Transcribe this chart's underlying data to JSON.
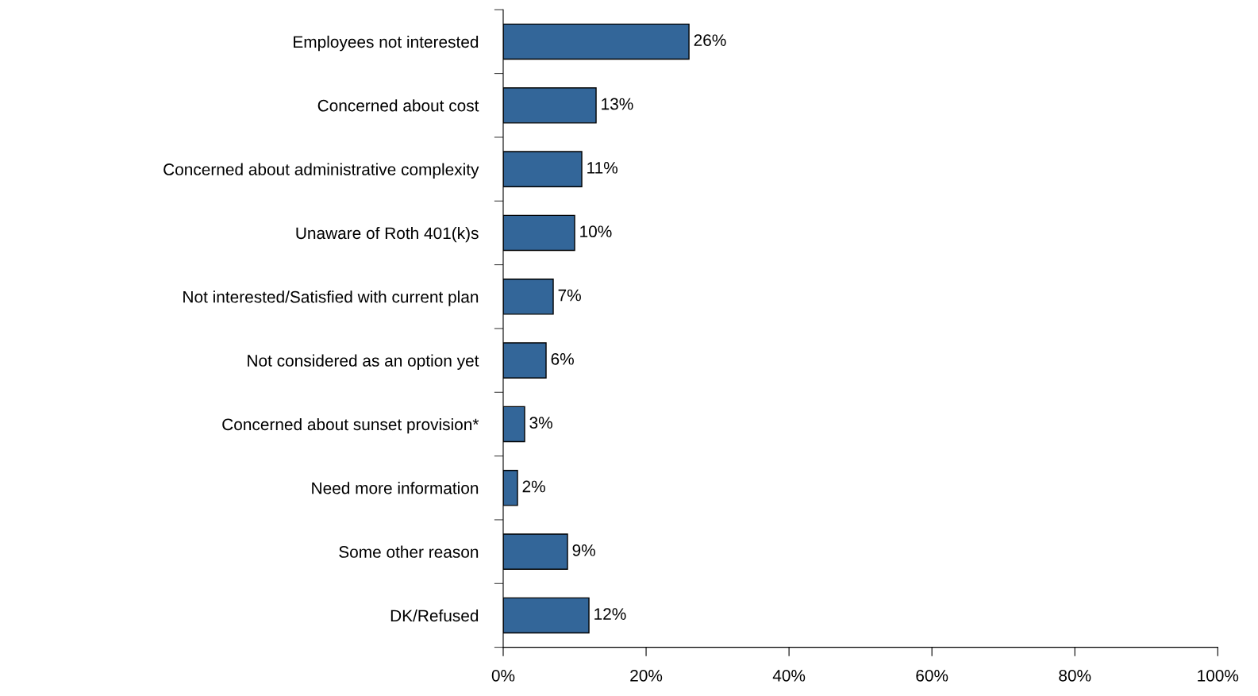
{
  "chart_data": {
    "type": "bar",
    "orientation": "horizontal",
    "categories": [
      "Employees not interested",
      "Concerned about cost",
      "Concerned about administrative complexity",
      "Unaware of Roth 401(k)s",
      "Not interested/Satisfied with current plan",
      "Not considered as an option yet",
      "Concerned about sunset provision*",
      "Need more information",
      "Some other reason",
      "DK/Refused"
    ],
    "values": [
      26,
      13,
      11,
      10,
      7,
      6,
      3,
      2,
      9,
      12
    ],
    "value_labels": [
      "26%",
      "13%",
      "11%",
      "10%",
      "7%",
      "6%",
      "3%",
      "2%",
      "9%",
      "12%"
    ],
    "color": "#336699",
    "xlim": [
      0,
      100
    ],
    "xticks": [
      {
        "value": 0,
        "label": "0%"
      },
      {
        "value": 20,
        "label": "20%"
      },
      {
        "value": 40,
        "label": "40%"
      },
      {
        "value": 60,
        "label": "60%"
      },
      {
        "value": 80,
        "label": "80%"
      },
      {
        "value": 100,
        "label": "100%"
      }
    ],
    "grid": false,
    "legend": false
  }
}
